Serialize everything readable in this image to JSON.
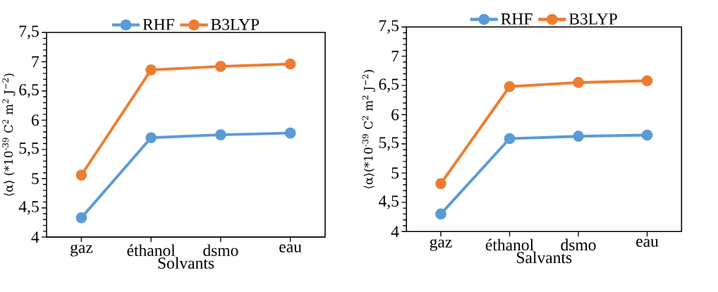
{
  "chart_data": [
    {
      "type": "line",
      "categories": [
        "gaz",
        "éthanol",
        "dsmo",
        "eau"
      ],
      "xlabel": "Solvants",
      "ylabel": "⟨α⟩ (*10$^{-39}$ C$^{2}$ m$^{2}$ J$^{−2}$)",
      "ylim": [
        4,
        7.5
      ],
      "yticks": [
        4,
        {
          "value": 4.5,
          "label": "4,5"
        },
        5,
        {
          "value": 5.5,
          "label": "5,5"
        },
        6,
        {
          "value": 6.5,
          "label": "6,5"
        },
        7,
        {
          "value": 7.5,
          "label": "7,5"
        }
      ],
      "legend": "top",
      "marker": "circle",
      "series": [
        {
          "name": "RHF",
          "color": "#5b9bd5",
          "values": [
            4.33,
            5.7,
            5.75,
            5.78
          ]
        },
        {
          "name": "B3LYP",
          "color": "#ed7d31",
          "values": [
            5.06,
            6.86,
            6.92,
            6.96
          ]
        }
      ]
    },
    {
      "type": "line",
      "categories": [
        "gaz",
        "éthanol",
        "dsmo",
        "eau"
      ],
      "xlabel": "Salvants",
      "ylabel": "⟨α⟩(*10$^{-39}$ C$^{2}$ m$^{2}$ J$^{−2}$)",
      "ylim": [
        4,
        7.5
      ],
      "yticks": [
        4,
        {
          "value": 4.5,
          "label": "4,5"
        },
        5,
        {
          "value": 5.5,
          "label": "5,5"
        },
        6,
        {
          "value": 6.5,
          "label": "6,5"
        },
        7,
        {
          "value": 7.5,
          "label": "7,5"
        }
      ],
      "legend": "top",
      "marker": "circle",
      "series": [
        {
          "name": "RHF",
          "color": "#5b9bd5",
          "values": [
            4.3,
            5.59,
            5.63,
            5.65
          ]
        },
        {
          "name": "B3LYP",
          "color": "#ed7d31",
          "values": [
            4.82,
            6.48,
            6.55,
            6.58
          ]
        }
      ]
    }
  ]
}
